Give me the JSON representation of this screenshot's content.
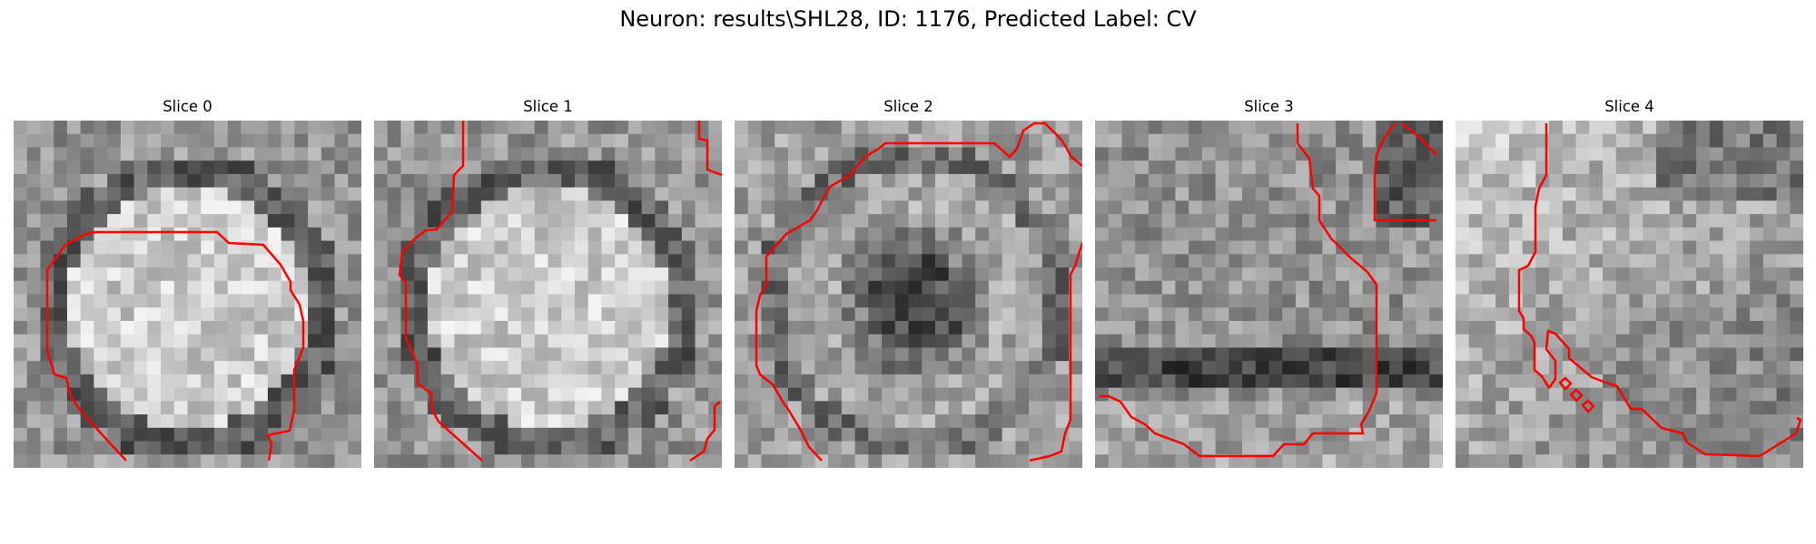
{
  "figure": {
    "title": "Neuron: results\\SHL28, ID: 1176, Predicted Label: CV",
    "contour_color": "#ff0000",
    "colormap": "gray",
    "slices": [
      {
        "label": "Slice 0",
        "texture": "bright-round-cell"
      },
      {
        "label": "Slice 1",
        "texture": "bright-round-cell"
      },
      {
        "label": "Slice 2",
        "texture": "mixed-dark-center"
      },
      {
        "label": "Slice 3",
        "texture": "dark-band"
      },
      {
        "label": "Slice 4",
        "texture": "bright-gradient"
      }
    ]
  }
}
